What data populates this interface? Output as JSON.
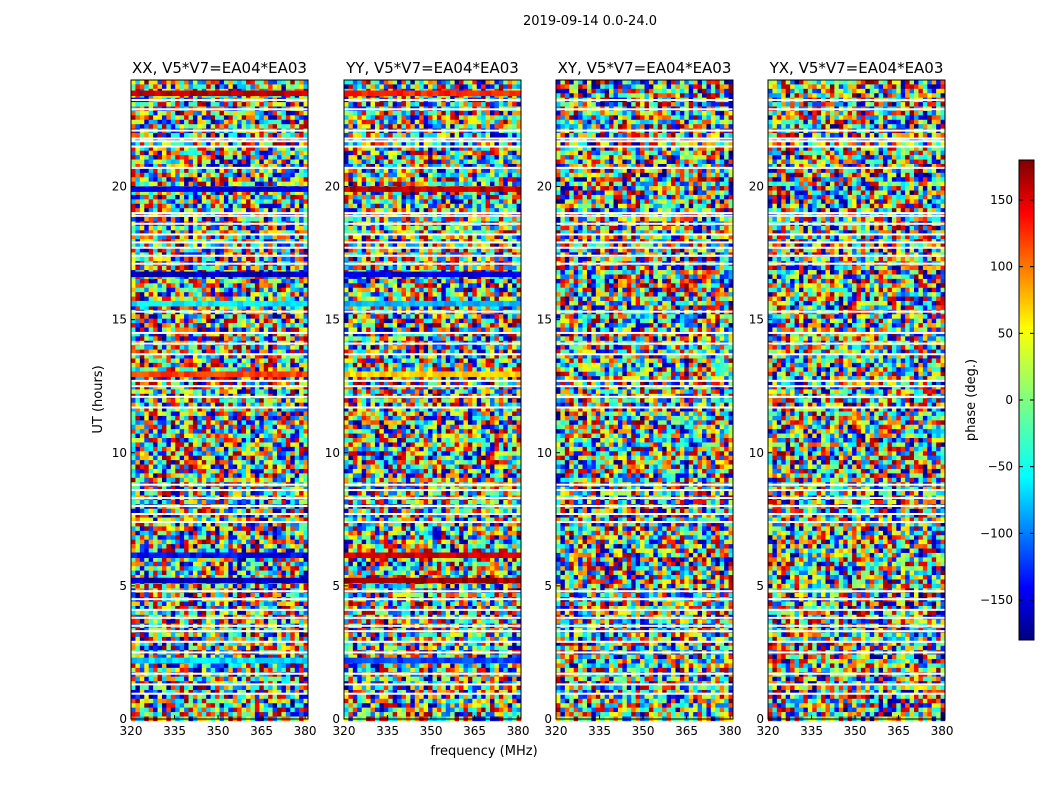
{
  "figure": {
    "title": "2019-09-14 0.0-24.0"
  },
  "chart_data": [
    {
      "type": "heatmap",
      "title": "XX, V5*V7=EA04*EA03",
      "xlabel": "",
      "ylabel": "UT (hours)",
      "xlim": [
        320,
        381
      ],
      "ylim": [
        0,
        24
      ],
      "xticks": [
        320,
        335,
        350,
        365,
        380
      ],
      "yticks": [
        0,
        5,
        10,
        15,
        20
      ],
      "colorbar": "phase (deg.)",
      "coherent_bands": [
        {
          "ut": 23.5,
          "phase": 160
        },
        {
          "ut": 19.9,
          "phase": -150
        },
        {
          "ut": 16.7,
          "phase": -160
        },
        {
          "ut": 15.6,
          "phase": -60
        },
        {
          "ut": 12.95,
          "phase": 120
        },
        {
          "ut": 6.15,
          "phase": -140
        },
        {
          "ut": 5.2,
          "phase": -160
        },
        {
          "ut": 2.2,
          "phase": -70
        }
      ]
    },
    {
      "type": "heatmap",
      "title": "YY, V5*V7=EA04*EA03",
      "xlabel": "frequency (MHz)",
      "ylabel": "",
      "xlim": [
        320,
        381
      ],
      "ylim": [
        0,
        24
      ],
      "xticks": [
        320,
        335,
        350,
        365,
        380
      ],
      "yticks": [
        0,
        5,
        10,
        15,
        20
      ],
      "colorbar": "phase (deg.)",
      "coherent_bands": [
        {
          "ut": 23.5,
          "phase": 130
        },
        {
          "ut": 19.9,
          "phase": 160
        },
        {
          "ut": 16.7,
          "phase": -150
        },
        {
          "ut": 15.6,
          "phase": -80
        },
        {
          "ut": 12.95,
          "phase": 70
        },
        {
          "ut": 6.15,
          "phase": 150
        },
        {
          "ut": 5.2,
          "phase": 170
        },
        {
          "ut": 2.2,
          "phase": -120
        }
      ]
    },
    {
      "type": "heatmap",
      "title": "XY, V5*V7=EA04*EA03",
      "xlabel": "",
      "ylabel": "",
      "xlim": [
        320,
        381
      ],
      "ylim": [
        0,
        24
      ],
      "xticks": [
        320,
        335,
        350,
        365,
        380
      ],
      "yticks": [
        0,
        5,
        10,
        15,
        20
      ],
      "colorbar": "phase (deg.)",
      "coherent_bands": []
    },
    {
      "type": "heatmap",
      "title": "YX, V5*V7=EA04*EA03",
      "xlabel": "",
      "ylabel": "",
      "xlim": [
        320,
        381
      ],
      "ylim": [
        0,
        24
      ],
      "xticks": [
        320,
        335,
        350,
        365,
        380
      ],
      "yticks": [
        0,
        5,
        10,
        15,
        20
      ],
      "colorbar": "phase (deg.)",
      "coherent_bands": []
    }
  ],
  "colorbar": {
    "label": "phase (deg.)",
    "range": [
      -180,
      180
    ],
    "ticks": [
      150,
      100,
      50,
      0,
      -50,
      -100,
      -150
    ],
    "tick_labels": [
      "150",
      "100",
      "50",
      "0",
      "−50",
      "−100",
      "−150"
    ],
    "colormap": [
      "#00007f",
      "#0000ff",
      "#00ffff",
      "#7fff7f",
      "#ffff00",
      "#ff0000",
      "#7f0000"
    ]
  },
  "flagged_ut_hours": [
    23.25,
    22.9,
    22.1,
    21.8,
    21.7,
    21.5,
    20.7,
    19.0,
    18.9,
    18.6,
    18.2,
    17.9,
    17.7,
    17.4,
    17.1,
    15.3,
    14.5,
    14.1,
    13.7,
    12.7,
    12.5,
    12.1,
    11.7,
    8.8,
    8.6,
    8.3,
    8.0,
    7.7,
    7.4,
    4.8,
    4.5,
    4.1,
    3.8,
    3.5,
    3.3,
    2.9,
    2.5,
    1.7,
    1.3,
    0.95
  ]
}
